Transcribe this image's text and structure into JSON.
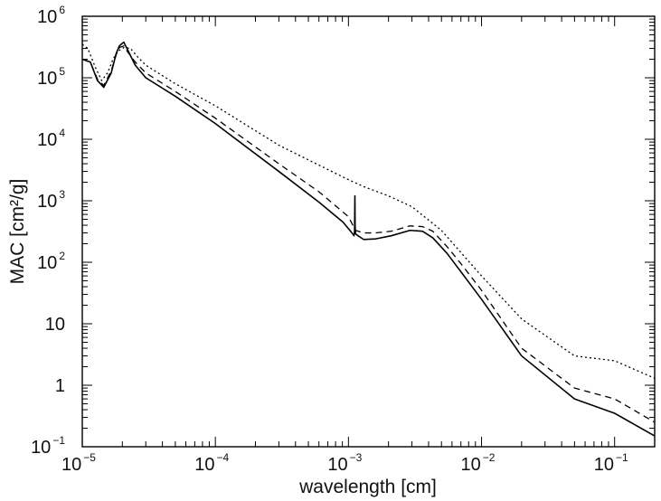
{
  "chart_data": {
    "type": "line",
    "xlabel": "wavelength [cm]",
    "ylabel": "MAC [cm²/g]",
    "xscale": "log",
    "yscale": "log",
    "xlim": [
      1e-05,
      0.2
    ],
    "ylim": [
      0.1,
      1000000
    ],
    "grid": false,
    "legend": "none",
    "x_ticks": [
      {
        "base": "10",
        "exp": "−5",
        "value": 1e-05
      },
      {
        "base": "10",
        "exp": "−4",
        "value": 0.0001
      },
      {
        "base": "10",
        "exp": "−3",
        "value": 0.001
      },
      {
        "base": "10",
        "exp": "−2",
        "value": 0.01
      },
      {
        "base": "10",
        "exp": "−1",
        "value": 0.1
      }
    ],
    "y_ticks": [
      {
        "base": "10",
        "exp": "−1",
        "value": 0.1
      },
      {
        "base": "1",
        "exp": "",
        "value": 1
      },
      {
        "base": "10",
        "exp": "",
        "value": 10
      },
      {
        "base": "10",
        "exp": "2",
        "value": 100
      },
      {
        "base": "10",
        "exp": "3",
        "value": 1000
      },
      {
        "base": "10",
        "exp": "4",
        "value": 10000
      },
      {
        "base": "10",
        "exp": "5",
        "value": 100000
      },
      {
        "base": "10",
        "exp": "6",
        "value": 1000000
      }
    ],
    "series": [
      {
        "style": "solid",
        "color": "#000000",
        "x": [
          1e-05,
          1.15e-05,
          1.3e-05,
          1.45e-05,
          1.65e-05,
          1.8e-05,
          1.9e-05,
          2.05e-05,
          2.2e-05,
          2.5e-05,
          3e-05,
          5e-05,
          0.0001,
          0.0003,
          0.0006,
          0.00091,
          0.00105,
          0.0011,
          0.001112,
          0.001118,
          0.001122,
          0.00113,
          0.00118,
          0.0013,
          0.0016,
          0.0021,
          0.0029,
          0.0036,
          0.0043,
          0.0055,
          0.007,
          0.01,
          0.02,
          0.05,
          0.1,
          0.2
        ],
        "y": [
          200000,
          180000,
          90000,
          70000,
          120000,
          250000,
          330000,
          380000,
          280000,
          160000,
          100000,
          50000,
          18000,
          3000,
          950,
          450,
          310,
          270,
          320,
          1200,
          400,
          290,
          270,
          235,
          240,
          270,
          330,
          320,
          250,
          140,
          70,
          25,
          3,
          0.6,
          0.35,
          0.15
        ]
      },
      {
        "style": "dashed",
        "color": "#000000",
        "x": [
          1e-05,
          1.15e-05,
          1.3e-05,
          1.45e-05,
          1.65e-05,
          1.8e-05,
          1.9e-05,
          2.05e-05,
          2.2e-05,
          2.5e-05,
          3e-05,
          5e-05,
          0.0001,
          0.0003,
          0.0006,
          0.001,
          0.00113,
          0.0013,
          0.0016,
          0.0021,
          0.0029,
          0.0036,
          0.0043,
          0.0055,
          0.007,
          0.01,
          0.02,
          0.05,
          0.1,
          0.2
        ],
        "y": [
          200000,
          180000,
          95000,
          75000,
          130000,
          240000,
          310000,
          330000,
          260000,
          180000,
          120000,
          60000,
          22000,
          4000,
          1400,
          550,
          330,
          300,
          300,
          320,
          390,
          380,
          320,
          180,
          95,
          35,
          4,
          0.9,
          0.6,
          0.25
        ]
      },
      {
        "style": "dotted",
        "color": "#000000",
        "x": [
          1e-05,
          1.1e-05,
          1.25e-05,
          1.4e-05,
          1.55e-05,
          1.7e-05,
          1.85e-05,
          2.05e-05,
          2.3e-05,
          2.6e-05,
          3e-05,
          5e-05,
          0.0001,
          0.0003,
          0.0006,
          0.001,
          0.0013,
          0.002,
          0.003,
          0.005,
          0.01,
          0.02,
          0.05,
          0.1,
          0.2
        ],
        "y": [
          350000,
          300000,
          150000,
          90000,
          120000,
          200000,
          270000,
          310000,
          300000,
          220000,
          160000,
          80000,
          35000,
          8000,
          3800,
          2200,
          1700,
          1200,
          800,
          330,
          60,
          12,
          3,
          2.5,
          1.3
        ]
      }
    ]
  }
}
